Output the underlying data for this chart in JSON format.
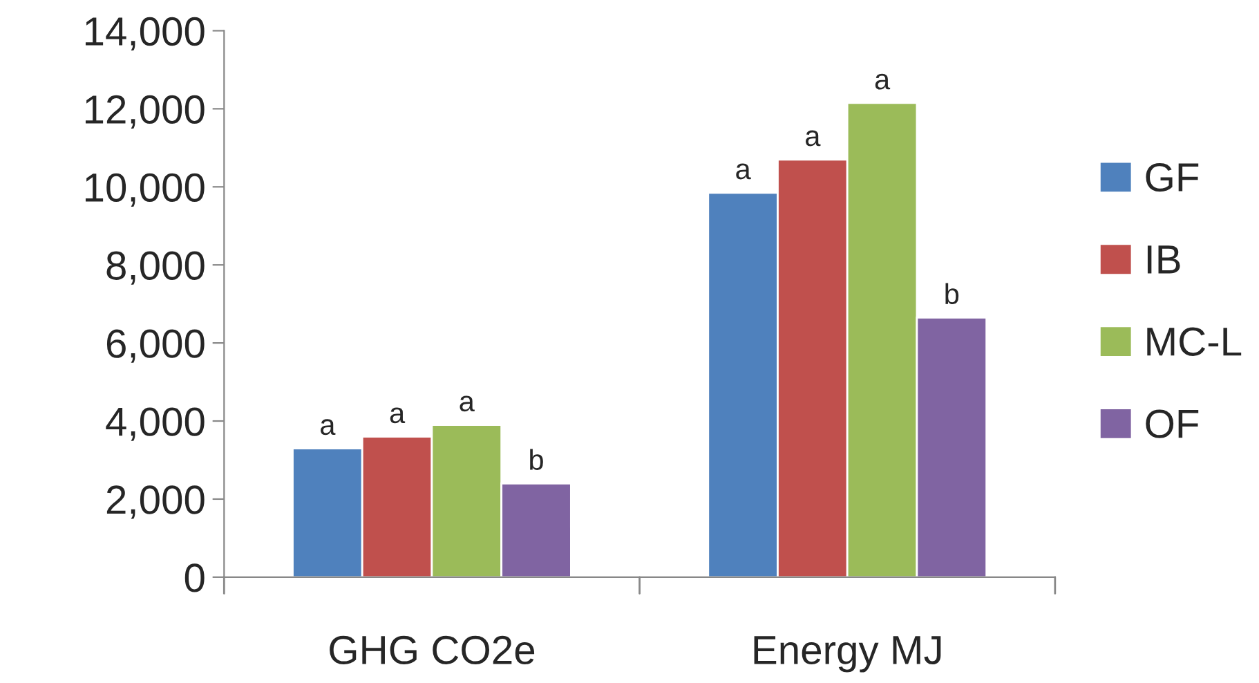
{
  "chart_data": {
    "type": "bar",
    "categories": [
      "GHG CO2e",
      "Energy MJ"
    ],
    "series": [
      {
        "name": "GF",
        "color": "#4f81bd",
        "values": [
          3300,
          9850
        ],
        "value_labels": [
          "a",
          "a"
        ]
      },
      {
        "name": "IB",
        "color": "#c0504d",
        "values": [
          3600,
          10700
        ],
        "value_labels": [
          "a",
          "a"
        ]
      },
      {
        "name": "MC-L",
        "color": "#9bbb59",
        "values": [
          3900,
          12150
        ],
        "value_labels": [
          "a",
          "a"
        ]
      },
      {
        "name": "OF",
        "color": "#8064a2",
        "values": [
          2400,
          6650
        ],
        "value_labels": [
          "b",
          "b"
        ]
      }
    ],
    "ylim": [
      0,
      14000
    ],
    "yticks": [
      0,
      {
        "value": 2000,
        "label": "2,000"
      },
      {
        "value": 4000,
        "label": "4,000"
      },
      {
        "value": 6000,
        "label": "6,000"
      },
      {
        "value": 8000,
        "label": "8,000"
      },
      {
        "value": 10000,
        "label": "10,000"
      },
      {
        "value": 12000,
        "label": "12,000"
      },
      {
        "value": 14000,
        "label": "14,000"
      }
    ],
    "grid": false,
    "legend": "right"
  }
}
